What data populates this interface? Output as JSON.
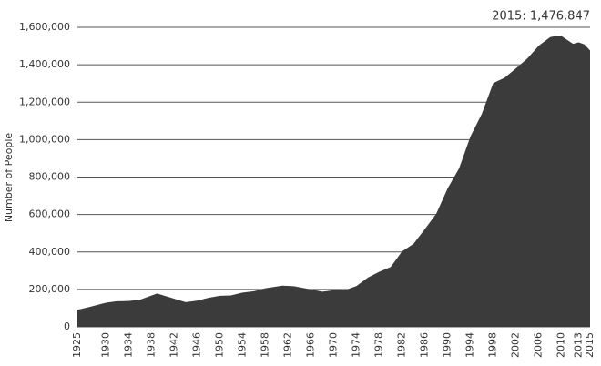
{
  "chart_data": {
    "type": "area",
    "annotation": "2015: 1,476,847",
    "y_label": "Number of People",
    "color": "#3b3b3b",
    "grid": true,
    "x": [
      1925,
      1927,
      1930,
      1932,
      1934,
      1936,
      1939,
      1942,
      1944,
      1946,
      1948,
      1950,
      1952,
      1954,
      1956,
      1958,
      1961,
      1963,
      1966,
      1968,
      1970,
      1972,
      1974,
      1976,
      1978,
      1980,
      1982,
      1984,
      1986,
      1988,
      1990,
      1992,
      1994,
      1996,
      1998,
      2000,
      2002,
      2004,
      2006,
      2008,
      2009,
      2010,
      2012,
      2013,
      2014,
      2015
    ],
    "values": [
      91000,
      105000,
      129000,
      137000,
      138000,
      145000,
      178000,
      150000,
      132000,
      140000,
      155000,
      166000,
      168000,
      183000,
      190000,
      206000,
      220000,
      217000,
      200000,
      188000,
      196000,
      196000,
      218000,
      263000,
      294000,
      320000,
      403000,
      443000,
      522000,
      604000,
      740000,
      846000,
      1017000,
      1138000,
      1302000,
      1331000,
      1381000,
      1434000,
      1502000,
      1548000,
      1554000,
      1553000,
      1512000,
      1520000,
      1509000,
      1476847
    ],
    "xlim": [
      1925,
      2015
    ],
    "xticks": [
      1925,
      1930,
      1934,
      1938,
      1942,
      1946,
      1950,
      1954,
      1958,
      1962,
      1966,
      1970,
      1974,
      1978,
      1982,
      1986,
      1990,
      1994,
      1998,
      2002,
      2006,
      2010,
      2013,
      2015
    ],
    "ylim": [
      0,
      1600000
    ],
    "yticks": [
      0,
      {
        "value": 200000,
        "label": "200,000"
      },
      {
        "value": 400000,
        "label": "400,000"
      },
      {
        "value": 600000,
        "label": "600,000"
      },
      {
        "value": 800000,
        "label": "800,000"
      },
      {
        "value": 1000000,
        "label": "1,000,000"
      },
      {
        "value": 1200000,
        "label": "1,200,000"
      },
      {
        "value": 1400000,
        "label": "1,400,000"
      },
      {
        "value": 1600000,
        "label": "1,600,000"
      }
    ]
  }
}
